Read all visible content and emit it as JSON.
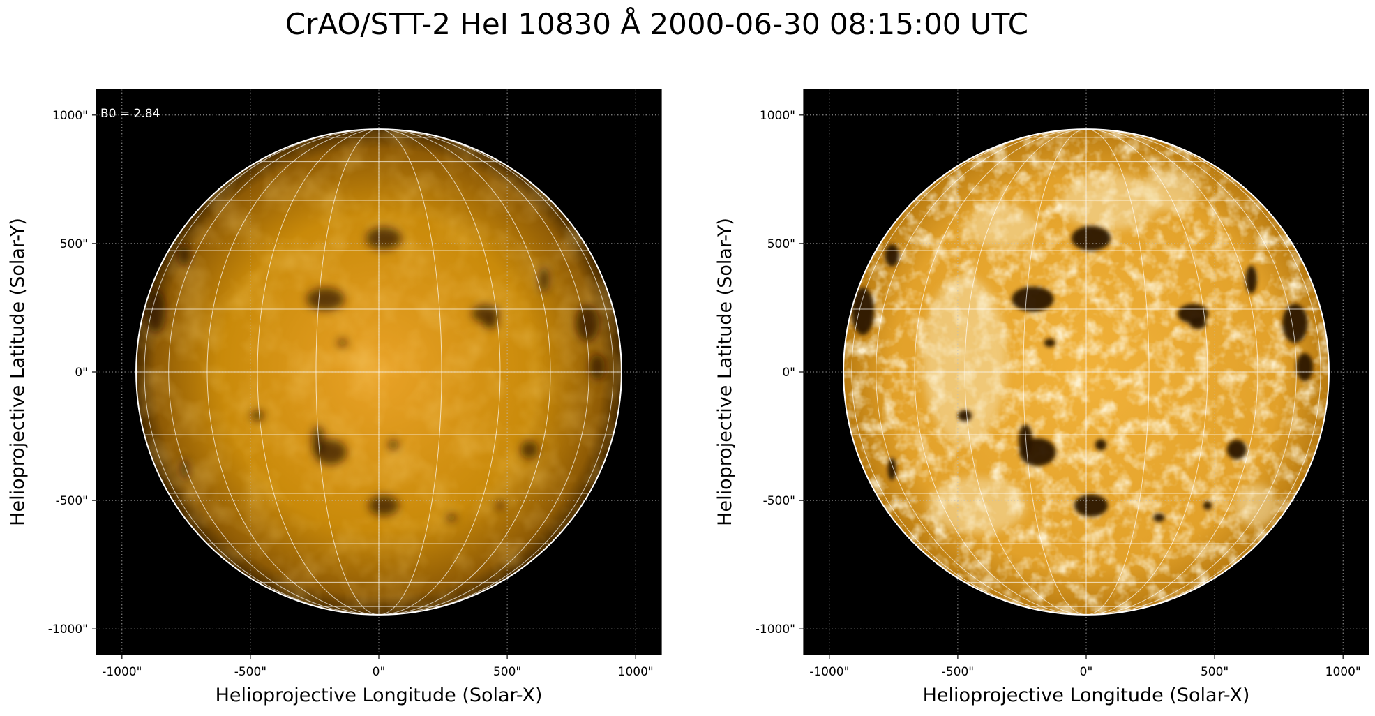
{
  "figure": {
    "title": "CrAO/STT-2 HeI 10830 Å 2000-06-30 08:15:00 UTC"
  },
  "colors": {
    "background": "#000000",
    "disk_base": "#c98a0a",
    "disk_bright": "#f6e2b0",
    "disk_dark": "#2a1600",
    "grid": "#ffffff",
    "axis_grid": "#bdbdbd"
  },
  "panels": [
    {
      "annotation": "B0 = 2.84",
      "xlabel": "Helioprojective Longitude (Solar-X)",
      "ylabel": "Helioprojective Latitude (Solar-Y)",
      "xticks": [
        "-1000\"",
        "-500\"",
        "0\"",
        "500\"",
        "1000\""
      ],
      "yticks": [
        "1000\"",
        "500\"",
        "0\"",
        "-500\"",
        "-1000\""
      ],
      "tick_values": [
        -1000,
        -500,
        0,
        500,
        1000
      ],
      "range_arcsec": [
        -1100,
        1100
      ],
      "solar_radius_arcsec": 945,
      "style": "smooth"
    },
    {
      "annotation": "",
      "xlabel": "Helioprojective Longitude (Solar-X)",
      "ylabel": "Helioprojective Latitude (Solar-Y)",
      "xticks": [
        "-1000\"",
        "-500\"",
        "0\"",
        "500\"",
        "1000\""
      ],
      "yticks": [
        "1000\"",
        "500\"",
        "0\"",
        "-500\"",
        "-1000\""
      ],
      "tick_values": [
        -1000,
        -500,
        0,
        500,
        1000
      ],
      "range_arcsec": [
        -1100,
        1100
      ],
      "solar_radius_arcsec": 945,
      "style": "enhanced"
    }
  ]
}
